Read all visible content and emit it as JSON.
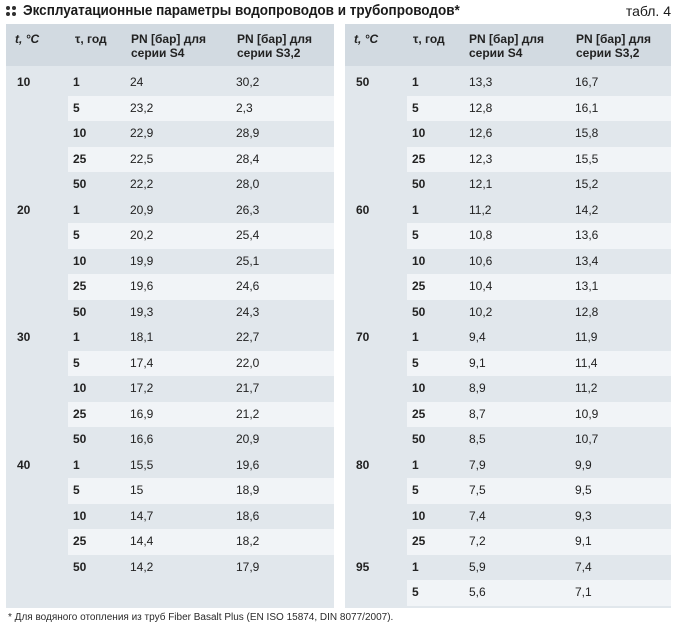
{
  "title": "Эксплуатационные параметры водопроводов и трубопроводов*",
  "table_label": "табл. 4",
  "columns": {
    "t": "t, °C",
    "tau": "τ, год",
    "s4_line1": "PN [бар] для",
    "s4_line2": "серии S4",
    "s32_line1": "PN [бар] для",
    "s32_line2": "серии S3,2"
  },
  "left_rows": [
    {
      "t": "10",
      "tau": "1",
      "s4": "24",
      "s32": "30,2"
    },
    {
      "t": "",
      "tau": "5",
      "s4": "23,2",
      "s32": "2,3"
    },
    {
      "t": "",
      "tau": "10",
      "s4": "22,9",
      "s32": "28,9"
    },
    {
      "t": "",
      "tau": "25",
      "s4": "22,5",
      "s32": "28,4"
    },
    {
      "t": "",
      "tau": "50",
      "s4": "22,2",
      "s32": "28,0"
    },
    {
      "t": "20",
      "tau": "1",
      "s4": "20,9",
      "s32": "26,3"
    },
    {
      "t": "",
      "tau": "5",
      "s4": "20,2",
      "s32": "25,4"
    },
    {
      "t": "",
      "tau": "10",
      "s4": "19,9",
      "s32": "25,1"
    },
    {
      "t": "",
      "tau": "25",
      "s4": "19,6",
      "s32": "24,6"
    },
    {
      "t": "",
      "tau": "50",
      "s4": "19,3",
      "s32": "24,3"
    },
    {
      "t": "30",
      "tau": "1",
      "s4": "18,1",
      "s32": "22,7"
    },
    {
      "t": "",
      "tau": "5",
      "s4": "17,4",
      "s32": "22,0"
    },
    {
      "t": "",
      "tau": "10",
      "s4": "17,2",
      "s32": "21,7"
    },
    {
      "t": "",
      "tau": "25",
      "s4": "16,9",
      "s32": "21,2"
    },
    {
      "t": "",
      "tau": "50",
      "s4": "16,6",
      "s32": "20,9"
    },
    {
      "t": "40",
      "tau": "1",
      "s4": "15,5",
      "s32": "19,6"
    },
    {
      "t": "",
      "tau": "5",
      "s4": "15",
      "s32": "18,9"
    },
    {
      "t": "",
      "tau": "10",
      "s4": "14,7",
      "s32": "18,6"
    },
    {
      "t": "",
      "tau": "25",
      "s4": "14,4",
      "s32": "18,2"
    },
    {
      "t": "",
      "tau": "50",
      "s4": "14,2",
      "s32": "17,9"
    }
  ],
  "right_rows": [
    {
      "t": "50",
      "tau": "1",
      "s4": "13,3",
      "s32": "16,7"
    },
    {
      "t": "",
      "tau": "5",
      "s4": "12,8",
      "s32": "16,1"
    },
    {
      "t": "",
      "tau": "10",
      "s4": "12,6",
      "s32": "15,8"
    },
    {
      "t": "",
      "tau": "25",
      "s4": "12,3",
      "s32": "15,5"
    },
    {
      "t": "",
      "tau": "50",
      "s4": "12,1",
      "s32": "15,2"
    },
    {
      "t": "60",
      "tau": "1",
      "s4": "11,2",
      "s32": "14,2"
    },
    {
      "t": "",
      "tau": "5",
      "s4": "10,8",
      "s32": "13,6"
    },
    {
      "t": "",
      "tau": "10",
      "s4": "10,6",
      "s32": "13,4"
    },
    {
      "t": "",
      "tau": "25",
      "s4": "10,4",
      "s32": "13,1"
    },
    {
      "t": "",
      "tau": "50",
      "s4": "10,2",
      "s32": "12,8"
    },
    {
      "t": "70",
      "tau": "1",
      "s4": "9,4",
      "s32": "11,9"
    },
    {
      "t": "",
      "tau": "5",
      "s4": "9,1",
      "s32": "11,4"
    },
    {
      "t": "",
      "tau": "10",
      "s4": "8,9",
      "s32": "11,2"
    },
    {
      "t": "",
      "tau": "25",
      "s4": "8,7",
      "s32": "10,9"
    },
    {
      "t": "",
      "tau": "50",
      "s4": "8,5",
      "s32": "10,7"
    },
    {
      "t": "80",
      "tau": "1",
      "s4": "7,9",
      "s32": "9,9"
    },
    {
      "t": "",
      "tau": "5",
      "s4": "7,5",
      "s32": "9,5"
    },
    {
      "t": "",
      "tau": "10",
      "s4": "7,4",
      "s32": "9,3"
    },
    {
      "t": "",
      "tau": "25",
      "s4": "7,2",
      "s32": "9,1"
    },
    {
      "t": "95",
      "tau": "1",
      "s4": "5,9",
      "s32": "7,4"
    },
    {
      "t": "",
      "tau": "5",
      "s4": "5,6",
      "s32": "7,1"
    }
  ],
  "footnote": "* Для водяного отопления из труб Fiber Basalt Plus (EN ISO 15874, DIN 8077/2007).",
  "colors": {
    "panel": "#e1e7ec",
    "header": "#d2dae1",
    "stripe": "#f1f4f7"
  }
}
